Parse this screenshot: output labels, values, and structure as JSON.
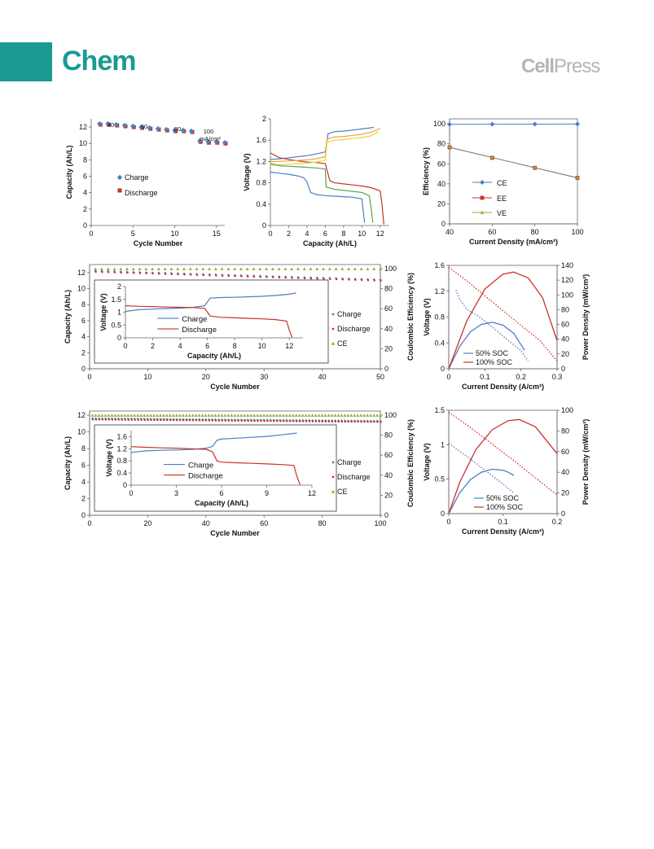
{
  "header": {
    "journal": "Chem",
    "publisher_bold": "Cell",
    "publisher_light": "Press",
    "brand_color": "#1a9a92",
    "publisher_color": "#b4b4b4"
  },
  "colors": {
    "charge_blue": "#4a7fc1",
    "discharge_red": "#c8312b",
    "ce_green": "#8db33a",
    "curve_orange": "#f2a23c",
    "curve_yellow": "#e9d63a",
    "curve_green": "#5aa64a"
  },
  "chart_data": [
    {
      "id": "a",
      "type": "scatter",
      "xlabel": "Cycle Number",
      "ylabel": "Capacity (Ah/L)",
      "xlim": [
        0,
        16
      ],
      "ylim": [
        0,
        13
      ],
      "xticks": [
        0,
        5,
        10,
        15
      ],
      "yticks": [
        0,
        2,
        4,
        6,
        8,
        10,
        12
      ],
      "annotations": [
        "40",
        "60",
        "80",
        "100",
        "mA/cm²"
      ],
      "legend": [
        "Charge",
        "Discharge"
      ],
      "series": [
        {
          "name": "Charge",
          "x": [
            1,
            2,
            3,
            4,
            5,
            6,
            7,
            8,
            9,
            10,
            11,
            12,
            13,
            14,
            15,
            16
          ],
          "y": [
            12.4,
            12.4,
            12.3,
            12.2,
            12.1,
            12.0,
            11.9,
            11.8,
            11.7,
            11.6,
            11.6,
            11.5,
            10.3,
            10.2,
            10.2,
            10.1
          ]
        },
        {
          "name": "Discharge",
          "x": [
            1,
            2,
            3,
            4,
            5,
            6,
            7,
            8,
            9,
            10,
            11,
            12,
            13,
            14,
            15,
            16
          ],
          "y": [
            12.3,
            12.3,
            12.2,
            12.1,
            12.0,
            11.9,
            11.8,
            11.7,
            11.6,
            11.5,
            11.5,
            11.4,
            10.2,
            10.1,
            10.1,
            10.0
          ]
        }
      ]
    },
    {
      "id": "b",
      "type": "line",
      "xlabel": "Capacity (Ah/L)",
      "ylabel": "Voltage (V)",
      "xlim": [
        0,
        13
      ],
      "ylim": [
        0,
        2
      ],
      "xticks": [
        0,
        2,
        4,
        6,
        8,
        10,
        12
      ],
      "yticks": [
        0,
        0.4,
        0.8,
        1.2,
        1.6,
        2
      ],
      "series": [
        {
          "color": "charge_blue",
          "x": [
            0,
            1,
            2,
            3,
            4,
            5,
            6,
            6.3,
            7,
            8,
            9,
            10,
            11.3
          ],
          "y": [
            1.24,
            1.25,
            1.27,
            1.29,
            1.31,
            1.34,
            1.38,
            1.72,
            1.76,
            1.77,
            1.79,
            1.81,
            1.84
          ]
        },
        {
          "color": "discharge_red",
          "x": [
            0,
            1,
            2,
            3,
            4,
            5,
            6,
            6.5,
            7,
            8,
            9,
            10,
            11,
            12,
            12.2,
            12.4
          ],
          "y": [
            1.36,
            1.27,
            1.24,
            1.21,
            1.19,
            1.18,
            1.16,
            0.84,
            0.8,
            0.78,
            0.76,
            0.74,
            0.71,
            0.65,
            0.4,
            0.02
          ]
        },
        {
          "color": "curve_orange",
          "x": [
            0,
            1,
            2,
            3,
            4,
            5,
            6,
            6.2,
            7,
            8,
            9,
            10,
            11,
            12
          ],
          "y": [
            1.2,
            1.2,
            1.21,
            1.22,
            1.23,
            1.25,
            1.29,
            1.62,
            1.66,
            1.67,
            1.69,
            1.71,
            1.75,
            1.82
          ]
        },
        {
          "color": "curve_yellow",
          "x": [
            0,
            1,
            2,
            3,
            4,
            5,
            6,
            6.2,
            7,
            8,
            9,
            10,
            11,
            11.8
          ],
          "y": [
            1.13,
            1.14,
            1.15,
            1.16,
            1.17,
            1.19,
            1.22,
            1.56,
            1.6,
            1.61,
            1.63,
            1.65,
            1.68,
            1.76
          ]
        },
        {
          "color": "curve_green",
          "x": [
            0,
            1,
            2,
            3,
            4,
            5,
            6,
            6.1,
            7,
            8,
            9,
            10,
            10.8,
            11,
            11.2
          ],
          "y": [
            1.16,
            1.12,
            1.11,
            1.1,
            1.09,
            1.08,
            1.06,
            0.72,
            0.68,
            0.66,
            0.64,
            0.62,
            0.56,
            0.35,
            0.05
          ]
        },
        {
          "color": "charge_blue",
          "x": [
            0,
            1,
            2,
            3,
            3.6,
            4,
            4.4,
            5,
            6,
            7,
            8,
            9,
            10,
            10.3
          ],
          "y": [
            1.0,
            0.98,
            0.96,
            0.93,
            0.9,
            0.82,
            0.62,
            0.58,
            0.56,
            0.55,
            0.54,
            0.53,
            0.5,
            0.05
          ]
        }
      ]
    },
    {
      "id": "c",
      "type": "line",
      "xlabel": "Current Density (mA/cm²)",
      "ylabel": "Efficiency (%)",
      "xlim": [
        40,
        100
      ],
      "ylim": [
        0,
        105
      ],
      "xticks": [
        40,
        60,
        80,
        100
      ],
      "yticks": [
        0,
        20,
        40,
        60,
        80,
        100
      ],
      "legend": [
        "CE",
        "EE",
        "VE"
      ],
      "series": [
        {
          "name": "CE",
          "x": [
            40,
            60,
            80,
            100
          ],
          "y": [
            99.5,
            99.6,
            99.7,
            99.8
          ]
        },
        {
          "name": "EE",
          "x": [
            40,
            60,
            80,
            100
          ],
          "y": [
            76.5,
            66,
            56,
            46
          ]
        },
        {
          "name": "VE",
          "x": [
            40,
            60,
            80,
            100
          ],
          "y": [
            77,
            66.5,
            56.5,
            46.5
          ]
        }
      ]
    },
    {
      "id": "d",
      "type": "scatter",
      "xlabel": "Cycle Number",
      "ylabel": "Capacity (Ah/L)",
      "y2label": "Coulombic Efficiency (%)",
      "xlim": [
        0,
        50
      ],
      "ylim": [
        0,
        13
      ],
      "y2lim": [
        0,
        104
      ],
      "xticks": [
        0,
        10,
        20,
        30,
        40,
        50
      ],
      "yticks": [
        0,
        2,
        4,
        6,
        8,
        10,
        12
      ],
      "y2ticks": [
        0,
        20,
        40,
        60,
        80,
        100
      ],
      "legend": [
        "Charge",
        "Discharge",
        "CE"
      ],
      "charge_start": 12.2,
      "charge_end": 11.1,
      "discharge_start": 12.1,
      "discharge_end": 11.0,
      "ce_value": 99.6,
      "inset": {
        "xlabel": "Capacity (Ah/L)",
        "ylabel": "Voltage (V)",
        "xlim": [
          0,
          13
        ],
        "ylim": [
          0,
          2
        ],
        "xticks": [
          0,
          2,
          4,
          6,
          8,
          10,
          12
        ],
        "yticks": [
          0,
          0.5,
          1,
          1.5,
          2
        ],
        "legend": [
          "Charge",
          "Discharge"
        ],
        "charge": {
          "x": [
            0,
            1,
            2,
            3,
            4,
            5,
            5.8,
            6.2,
            7,
            8,
            9,
            10,
            11,
            12,
            12.5
          ],
          "y": [
            1.03,
            1.1,
            1.12,
            1.14,
            1.16,
            1.19,
            1.25,
            1.55,
            1.57,
            1.58,
            1.6,
            1.62,
            1.65,
            1.7,
            1.75
          ]
        },
        "discharge": {
          "x": [
            0,
            1,
            2,
            3,
            4,
            5,
            5.8,
            6.2,
            7,
            8,
            9,
            10,
            11,
            11.8,
            12,
            12.2
          ],
          "y": [
            1.25,
            1.23,
            1.22,
            1.2,
            1.19,
            1.18,
            1.15,
            0.85,
            0.8,
            0.78,
            0.76,
            0.74,
            0.71,
            0.65,
            0.3,
            0.02
          ]
        }
      }
    },
    {
      "id": "e",
      "type": "line",
      "xlabel": "Current Density (A/cm²)",
      "ylabel": "Voltage (V)",
      "y2label": "Power Density (mW/cm²)",
      "xlim": [
        0,
        0.3
      ],
      "ylim": [
        0,
        1.6
      ],
      "y2lim": [
        0,
        140
      ],
      "xticks": [
        0,
        0.1,
        0.2,
        0.3
      ],
      "yticks": [
        0,
        0.4,
        0.8,
        1.2,
        1.6
      ],
      "y2ticks": [
        0,
        20,
        40,
        60,
        80,
        100,
        120,
        140
      ],
      "legend": [
        "50% SOC",
        "100% SOC"
      ],
      "voltage_50": {
        "x": [
          0.02,
          0.03,
          0.05,
          0.08,
          0.12,
          0.16,
          0.2,
          0.22
        ],
        "y": [
          1.22,
          1.08,
          0.92,
          0.82,
          0.65,
          0.46,
          0.28,
          0.12
        ]
      },
      "voltage_100": {
        "x": [
          0,
          0.05,
          0.1,
          0.15,
          0.2,
          0.25,
          0.3
        ],
        "y": [
          1.57,
          1.36,
          1.13,
          0.9,
          0.67,
          0.45,
          0.12
        ]
      },
      "power_50": {
        "x": [
          0,
          0.03,
          0.06,
          0.09,
          0.12,
          0.15,
          0.18,
          0.21
        ],
        "y": [
          0,
          30,
          50,
          60,
          63,
          59,
          48,
          25
        ]
      },
      "power_100": {
        "x": [
          0,
          0.05,
          0.1,
          0.15,
          0.18,
          0.22,
          0.26,
          0.3
        ],
        "y": [
          0,
          65,
          108,
          128,
          131,
          123,
          96,
          38
        ]
      }
    },
    {
      "id": "f",
      "type": "scatter",
      "xlabel": "Cycle Number",
      "ylabel": "Capacity (Ah/L)",
      "y2label": "Coulombic Efficiency (%)",
      "xlim": [
        0,
        100
      ],
      "ylim": [
        0,
        12.5
      ],
      "y2lim": [
        0,
        104
      ],
      "xticks": [
        0,
        20,
        40,
        60,
        80,
        100
      ],
      "yticks": [
        0,
        2,
        4,
        6,
        8,
        10,
        12
      ],
      "y2ticks": [
        0,
        20,
        40,
        60,
        80,
        100
      ],
      "legend": [
        "Charge",
        "Discharge",
        "CE"
      ],
      "charge_start": 11.6,
      "charge_end": 11.3,
      "discharge_start": 11.5,
      "discharge_end": 11.2,
      "ce_value": 99.7,
      "inset": {
        "xlabel": "Capacity (Ah/L)",
        "ylabel": "Voltage (V)",
        "xlim": [
          0,
          12
        ],
        "ylim": [
          0,
          1.8
        ],
        "xticks": [
          0,
          3,
          6,
          9,
          12
        ],
        "yticks": [
          0,
          0.4,
          0.8,
          1.2,
          1.6
        ],
        "legend": [
          "Charge",
          "Discharge"
        ],
        "charge": {
          "x": [
            0,
            1,
            2,
            3,
            4,
            5,
            5.4,
            5.7,
            6,
            7,
            8,
            9,
            10,
            11
          ],
          "y": [
            1.08,
            1.13,
            1.15,
            1.16,
            1.18,
            1.22,
            1.28,
            1.48,
            1.52,
            1.55,
            1.58,
            1.61,
            1.66,
            1.72
          ]
        },
        "discharge": {
          "x": [
            0,
            1,
            2,
            3,
            4,
            5,
            5.4,
            5.7,
            6,
            7,
            8,
            9,
            10,
            10.8,
            11,
            11.2
          ],
          "y": [
            1.27,
            1.25,
            1.23,
            1.22,
            1.2,
            1.18,
            1.1,
            0.8,
            0.76,
            0.74,
            0.72,
            0.7,
            0.68,
            0.65,
            0.3,
            0.02
          ]
        }
      }
    },
    {
      "id": "g",
      "type": "line",
      "xlabel": "Current Density (A/cm²)",
      "ylabel": "Voltage (V)",
      "y2label": "Power Density (mW/cm²)",
      "xlim": [
        0,
        0.2
      ],
      "ylim": [
        0,
        1.5
      ],
      "y2lim": [
        0,
        100
      ],
      "xticks": [
        0,
        0.1,
        0.2
      ],
      "yticks": [
        0,
        0.5,
        1,
        1.5
      ],
      "y2ticks": [
        0,
        20,
        40,
        60,
        80,
        100
      ],
      "legend": [
        "50% SOC",
        "100% SOC"
      ],
      "voltage_50": {
        "x": [
          0,
          0.02,
          0.04,
          0.06,
          0.08,
          0.1,
          0.12
        ],
        "y": [
          1.02,
          0.91,
          0.79,
          0.67,
          0.55,
          0.43,
          0.3
        ]
      },
      "voltage_100": {
        "x": [
          0,
          0.04,
          0.08,
          0.12,
          0.16,
          0.2
        ],
        "y": [
          1.47,
          1.25,
          1.01,
          0.77,
          0.52,
          0.27
        ]
      },
      "power_50": {
        "x": [
          0,
          0.02,
          0.04,
          0.06,
          0.08,
          0.1,
          0.11,
          0.12
        ],
        "y": [
          0,
          20,
          33,
          40,
          43,
          42,
          40,
          37
        ]
      },
      "power_100": {
        "x": [
          0,
          0.02,
          0.05,
          0.08,
          0.11,
          0.13,
          0.16,
          0.2
        ],
        "y": [
          0,
          30,
          62,
          81,
          90,
          91,
          84,
          58
        ]
      }
    }
  ]
}
